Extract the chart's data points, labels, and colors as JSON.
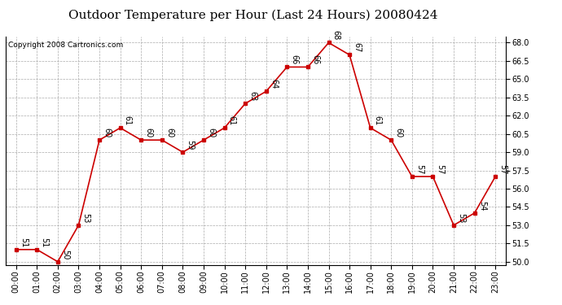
{
  "title": "Outdoor Temperature per Hour (Last 24 Hours) 20080424",
  "copyright": "Copyright 2008 Cartronics.com",
  "hours": [
    "00:00",
    "01:00",
    "02:00",
    "03:00",
    "04:00",
    "05:00",
    "06:00",
    "07:00",
    "08:00",
    "09:00",
    "10:00",
    "11:00",
    "12:00",
    "13:00",
    "14:00",
    "15:00",
    "16:00",
    "17:00",
    "18:00",
    "19:00",
    "20:00",
    "21:00",
    "22:00",
    "23:00"
  ],
  "temps": [
    51,
    51,
    50,
    53,
    60,
    61,
    60,
    60,
    59,
    60,
    61,
    63,
    64,
    66,
    66,
    68,
    67,
    61,
    60,
    57,
    57,
    53,
    54,
    57
  ],
  "ylim_min": 49.7,
  "ylim_max": 68.5,
  "yticks": [
    50.0,
    51.5,
    53.0,
    54.5,
    56.0,
    57.5,
    59.0,
    60.5,
    62.0,
    63.5,
    65.0,
    66.5,
    68.0
  ],
  "line_color": "#cc0000",
  "marker": "s",
  "marker_size": 3,
  "bg_color": "#ffffff",
  "grid_color": "#aaaaaa",
  "title_fontsize": 11,
  "label_fontsize": 7,
  "annot_fontsize": 7,
  "copyright_fontsize": 6.5
}
